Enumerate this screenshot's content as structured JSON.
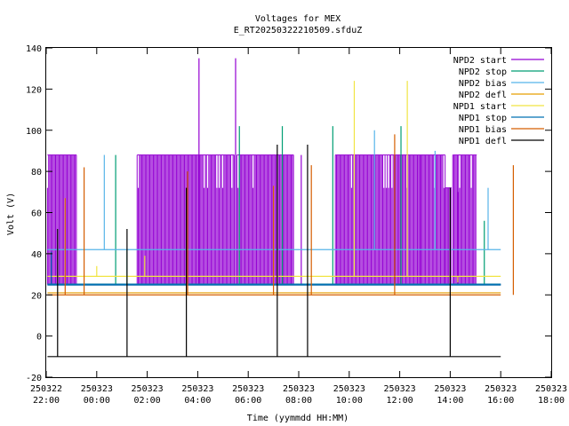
{
  "chart_data": {
    "type": "line",
    "title": "Voltages for MEX",
    "subtitle": "E_RT20250322210509.sfduZ",
    "xlabel": "Time (yymmdd HH:MM)",
    "ylabel": "Volt (V)",
    "x_range_hours": [
      22,
      42
    ],
    "ylim": [
      -20,
      140
    ],
    "yticks": [
      -20,
      0,
      20,
      40,
      60,
      80,
      100,
      120,
      140
    ],
    "xticks": [
      {
        "date": "250322",
        "time": "22:00",
        "h": 22
      },
      {
        "date": "250323",
        "time": "00:00",
        "h": 24
      },
      {
        "date": "250323",
        "time": "02:00",
        "h": 26
      },
      {
        "date": "250323",
        "time": "04:00",
        "h": 28
      },
      {
        "date": "250323",
        "time": "06:00",
        "h": 30
      },
      {
        "date": "250323",
        "time": "08:00",
        "h": 32
      },
      {
        "date": "250323",
        "time": "10:00",
        "h": 34
      },
      {
        "date": "250323",
        "time": "12:00",
        "h": 36
      },
      {
        "date": "250323",
        "time": "14:00",
        "h": 38
      },
      {
        "date": "250323",
        "time": "16:00",
        "h": 40
      },
      {
        "date": "250323",
        "time": "18:00",
        "h": 42
      }
    ],
    "grid": false,
    "legend_position": "top-right",
    "series": [
      {
        "name": "NPD2 start",
        "color": "#9400d3",
        "baseline": 25,
        "base_range": [
          22.05,
          40.0
        ],
        "bands": [
          [
            22.05,
            23.2,
            25,
            88
          ],
          [
            25.6,
            29.45,
            25,
            88
          ],
          [
            29.55,
            31.8,
            25,
            88
          ],
          [
            33.45,
            37.8,
            25,
            88
          ],
          [
            37.8,
            38.05,
            25,
            72
          ],
          [
            38.1,
            39.05,
            25,
            88
          ]
        ],
        "spikes": [
          [
            28.05,
            135
          ],
          [
            29.5,
            135
          ],
          [
            32.1,
            88
          ],
          [
            36.8,
            88
          ],
          [
            38.3,
            70
          ]
        ]
      },
      {
        "name": "NPD2 stop",
        "color": "#009e73",
        "baseline": 25,
        "base_range": [
          22.05,
          40.0
        ],
        "spikes": [
          [
            24.75,
            88
          ],
          [
            25.2,
            42
          ],
          [
            29.65,
            102
          ],
          [
            31.35,
            102
          ],
          [
            33.35,
            102
          ],
          [
            36.05,
            102
          ],
          [
            39.35,
            56
          ]
        ]
      },
      {
        "name": "NPD2 bias",
        "color": "#56b4e9",
        "baseline": 42,
        "base_range": [
          22.05,
          40.0
        ],
        "spikes": [
          [
            24.3,
            88
          ],
          [
            26.1,
            42
          ],
          [
            28.4,
            42
          ],
          [
            31.5,
            42
          ],
          [
            35.0,
            100
          ],
          [
            37.4,
            90
          ],
          [
            39.5,
            72
          ]
        ]
      },
      {
        "name": "NPD2 defl",
        "color": "#e69f00",
        "baseline": 21,
        "base_range": [
          22.05,
          40.0
        ],
        "spikes": []
      },
      {
        "name": "NPD1 start",
        "color": "#f0e442",
        "baseline": 29,
        "base_range": [
          22.05,
          40.0
        ],
        "spikes": [
          [
            24.0,
            34
          ],
          [
            25.9,
            39
          ],
          [
            34.2,
            124
          ],
          [
            36.3,
            124
          ],
          [
            38.3,
            26
          ]
        ]
      },
      {
        "name": "NPD1 stop",
        "color": "#0072b2",
        "baseline": 25,
        "base_range": [
          22.05,
          40.0
        ],
        "spikes": [
          [
            22.2,
            41
          ]
        ]
      },
      {
        "name": "NPD1 bias",
        "color": "#d55e00",
        "baseline": 20,
        "base_range": [
          22.05,
          40.0
        ],
        "spikes": [
          [
            22.75,
            67
          ],
          [
            23.5,
            82
          ],
          [
            27.6,
            80
          ],
          [
            31.0,
            73
          ],
          [
            32.5,
            83
          ],
          [
            35.8,
            98
          ],
          [
            40.5,
            83
          ]
        ]
      },
      {
        "name": "NPD1 defl",
        "color": "#000000",
        "baseline": -10,
        "base_range": [
          22.05,
          40.0
        ],
        "spikes": [
          [
            22.45,
            52
          ],
          [
            25.2,
            52
          ],
          [
            27.55,
            72
          ],
          [
            31.15,
            93
          ],
          [
            32.35,
            93
          ],
          [
            38.0,
            72
          ]
        ]
      }
    ]
  }
}
